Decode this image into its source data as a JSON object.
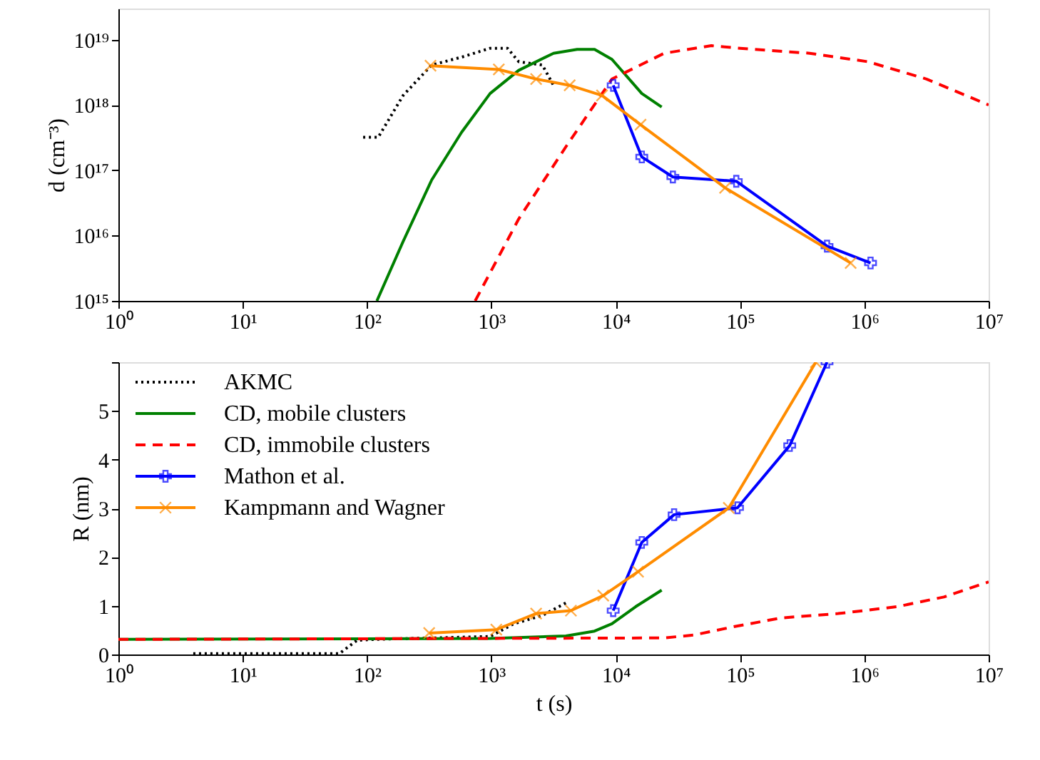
{
  "chart_data": [
    {
      "type": "line",
      "log": "xy",
      "ylabel": "d (cm⁻³)",
      "xlim": [
        1,
        10000000
      ],
      "ylim": [
        1000000000000000.0,
        3e+19
      ],
      "xticks": [
        {
          "value": 1,
          "label": "10⁰"
        },
        {
          "value": 10,
          "label": "10¹"
        },
        {
          "value": 100,
          "label": "10²"
        },
        {
          "value": 1000,
          "label": "10³"
        },
        {
          "value": 10000,
          "label": "10⁴"
        },
        {
          "value": 100000,
          "label": "10⁵"
        },
        {
          "value": 1000000,
          "label": "10⁶"
        },
        {
          "value": 10000000,
          "label": "10⁷"
        }
      ],
      "yticks": [
        {
          "value": 1000000000000000.0,
          "label": "10¹⁵"
        },
        {
          "value": 1e+16,
          "label": "10¹⁶"
        },
        {
          "value": 1e+17,
          "label": "10¹⁷"
        },
        {
          "value": 1e+18,
          "label": "10¹⁸"
        },
        {
          "value": 1e+19,
          "label": "10¹⁹"
        }
      ],
      "grid": false,
      "legend": false,
      "series": [
        {
          "color": "#000000",
          "line_style": "dotted",
          "marker": "none",
          "x": [
            93,
            123,
            195,
            331,
            575,
            977,
            1349,
            1660,
            2570,
            3162
          ],
          "values": [
            3.2e+17,
            3.2e+17,
            1.4e+18,
            4.1e+18,
            5.4e+18,
            7.4e+18,
            7.4e+18,
            4.6e+18,
            4.1e+18,
            2e+18
          ]
        },
        {
          "color": "#008000",
          "line_style": "solid",
          "marker": "none",
          "x": [
            120,
            195,
            331,
            575,
            977,
            1660,
            3162,
            4898,
            6761,
            9333,
            16218,
            23442
          ],
          "values": [
            1000000000000000.0,
            8100000000000000.0,
            7.1e+16,
            3.8e+17,
            1.5e+18,
            3.4e+18,
            6.2e+18,
            7.1e+18,
            7.1e+18,
            5e+18,
            1.5e+18,
            9.3e+17
          ]
        },
        {
          "color": "#ff0000",
          "line_style": "dashed",
          "marker": "none",
          "x": [
            741,
            1660,
            3981,
            9333,
            24547,
            58884,
            100000,
            363078,
            1071519,
            3162278,
            10000000
          ],
          "values": [
            1000000000000000.0,
            1.8e+16,
            2.3e+17,
            2.5e+18,
            6.2e+18,
            8.1e+18,
            7.4e+18,
            6.2e+18,
            4.6e+18,
            2.5e+18,
            1e+18
          ]
        },
        {
          "color": "#0000ff",
          "line_style": "solid",
          "marker": "cross",
          "x": [
            9550,
            16218,
            28840,
            93325,
            501187,
            1122018
          ],
          "values": [
            2e+18,
            1.6e+17,
            7.9e+16,
            6.8e+16,
            6900000000000000.0,
            3800000000000000.0
          ]
        },
        {
          "color": "#ff8c00",
          "line_style": "solid",
          "marker": "x",
          "x": [
            324,
            1148,
            2291,
            4266,
            7762,
            15849,
            75858,
            776247
          ],
          "values": [
            4e+18,
            3.5e+18,
            2.5e+18,
            2e+18,
            1.4e+18,
            5e+17,
            5.4e+16,
            3800000000000000.0
          ]
        }
      ]
    },
    {
      "type": "line",
      "log": "x",
      "xlabel": "t (s)",
      "ylabel": "R (nm)",
      "xlim": [
        1,
        10000000
      ],
      "ylim": [
        0,
        6
      ],
      "xticks": [
        {
          "value": 1,
          "label": "10⁰"
        },
        {
          "value": 10,
          "label": "10¹"
        },
        {
          "value": 100,
          "label": "10²"
        },
        {
          "value": 1000,
          "label": "10³"
        },
        {
          "value": 10000,
          "label": "10⁴"
        },
        {
          "value": 100000,
          "label": "10⁵"
        },
        {
          "value": 1000000,
          "label": "10⁶"
        },
        {
          "value": 10000000,
          "label": "10⁷"
        }
      ],
      "yticks": [
        0,
        1,
        2,
        3,
        4,
        5,
        {
          "value": 6,
          "label": null
        }
      ],
      "grid": false,
      "legend": "top left",
      "series": [
        {
          "name": "AKMC",
          "color": "#000000",
          "line_style": "dotted",
          "marker": "none",
          "x": [
            4,
            60,
            83,
            115,
            977,
            1514,
            2570,
            3981
          ],
          "values": [
            0.02,
            0.02,
            0.29,
            0.31,
            0.37,
            0.63,
            0.8,
            1.06
          ]
        },
        {
          "name": "CD, mobile clusters",
          "color": "#008000",
          "line_style": "solid",
          "marker": "none",
          "x": [
            1,
            977,
            3981,
            6761,
            9333,
            14454,
            23442
          ],
          "values": [
            0.31,
            0.33,
            0.38,
            0.48,
            0.63,
            0.98,
            1.32
          ]
        },
        {
          "name": "CD, immobile clusters",
          "color": "#ff0000",
          "line_style": "dashed",
          "marker": "none",
          "x": [
            1,
            24547,
            42658,
            89125,
            213796,
            616595,
            1819701,
            4365158,
            10000000
          ],
          "values": [
            0.31,
            0.34,
            0.4,
            0.57,
            0.75,
            0.84,
            0.98,
            1.18,
            1.49
          ]
        },
        {
          "name": "Mathon et al.",
          "color": "#0000ff",
          "line_style": "solid",
          "marker": "cross",
          "x": [
            9550,
            16218,
            29512,
            95499,
            251189,
            501187
          ],
          "values": [
            0.9,
            2.3,
            2.87,
            3.01,
            4.29,
            6.0
          ]
        },
        {
          "name": "Kampmann and Wagner",
          "color": "#ff8c00",
          "line_style": "solid",
          "marker": "x",
          "x": [
            316,
            1096,
            2291,
            4365,
            7943,
            15136,
            81283,
            407380
          ],
          "values": [
            0.44,
            0.51,
            0.84,
            0.9,
            1.21,
            1.7,
            3.01,
            6.0
          ]
        }
      ]
    }
  ]
}
